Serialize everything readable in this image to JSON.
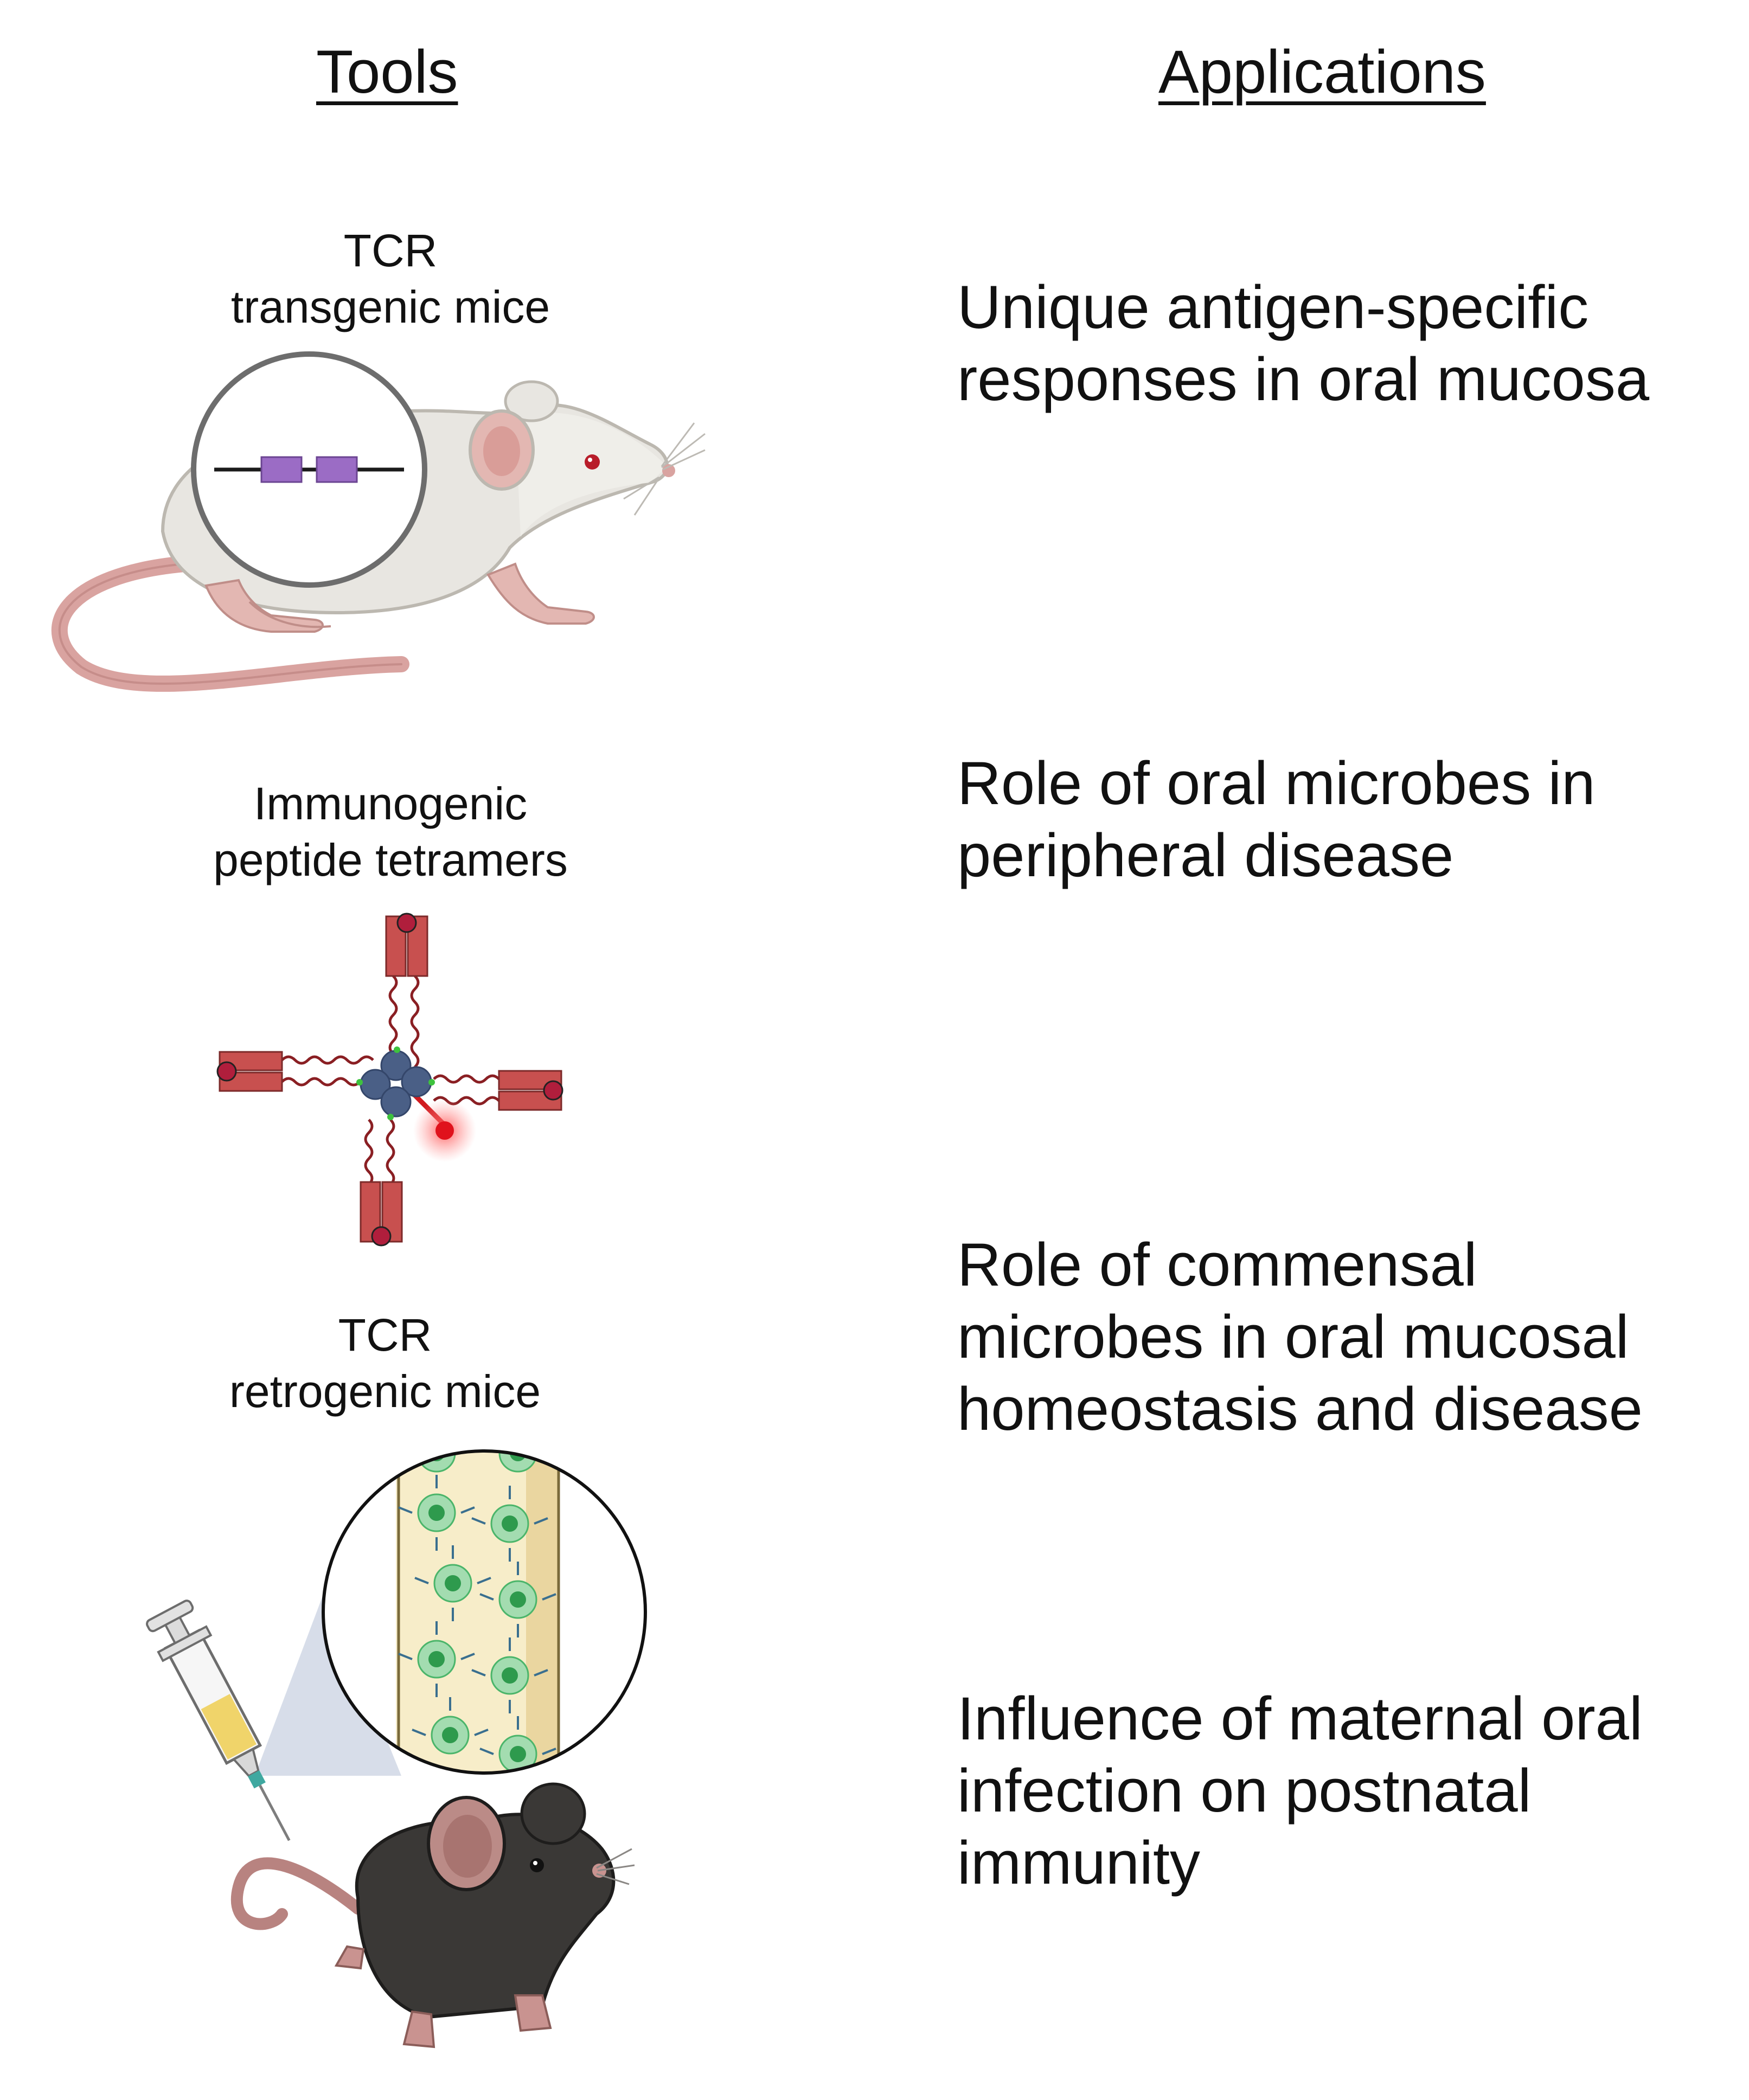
{
  "headings": {
    "tools": "Tools",
    "applications": "Applications"
  },
  "tools": [
    {
      "lines": [
        "TCR",
        "transgenic mice"
      ],
      "illustration": "white-mouse-with-transgene-inset"
    },
    {
      "lines": [
        "Immunogenic",
        "peptide tetramers"
      ],
      "illustration": "peptide-mhc-tetramer"
    },
    {
      "lines": [
        "TCR",
        "retrogenic mice"
      ],
      "illustration": "black-mouse-injection-with-bone-marrow-inset"
    }
  ],
  "applications": [
    {
      "lines": [
        "Unique antigen-specific",
        "responses in oral mucosa"
      ]
    },
    {
      "lines": [
        "Role of oral microbes in",
        "peripheral disease"
      ]
    },
    {
      "lines": [
        "Role of commensal",
        "microbes in oral mucosal",
        "homeostasis and disease"
      ]
    },
    {
      "lines": [
        "Influence of maternal oral",
        "infection on postnatal",
        "immunity"
      ]
    }
  ],
  "colors": {
    "white_mouse": "#e8e6e1",
    "black_mouse": "#3a3836",
    "mouse_skin": "#d9a3a0",
    "transgene_box": "#9b6cc5",
    "mhc_chain": "#c8504f",
    "peptide": "#b01e3c",
    "streptavidin": "#4a5f86",
    "fluorophore": "#e0121c",
    "stem_cell": "#4bb56a",
    "marrow": "#f7edc9",
    "syringe_fluid": "#f0d46a"
  }
}
